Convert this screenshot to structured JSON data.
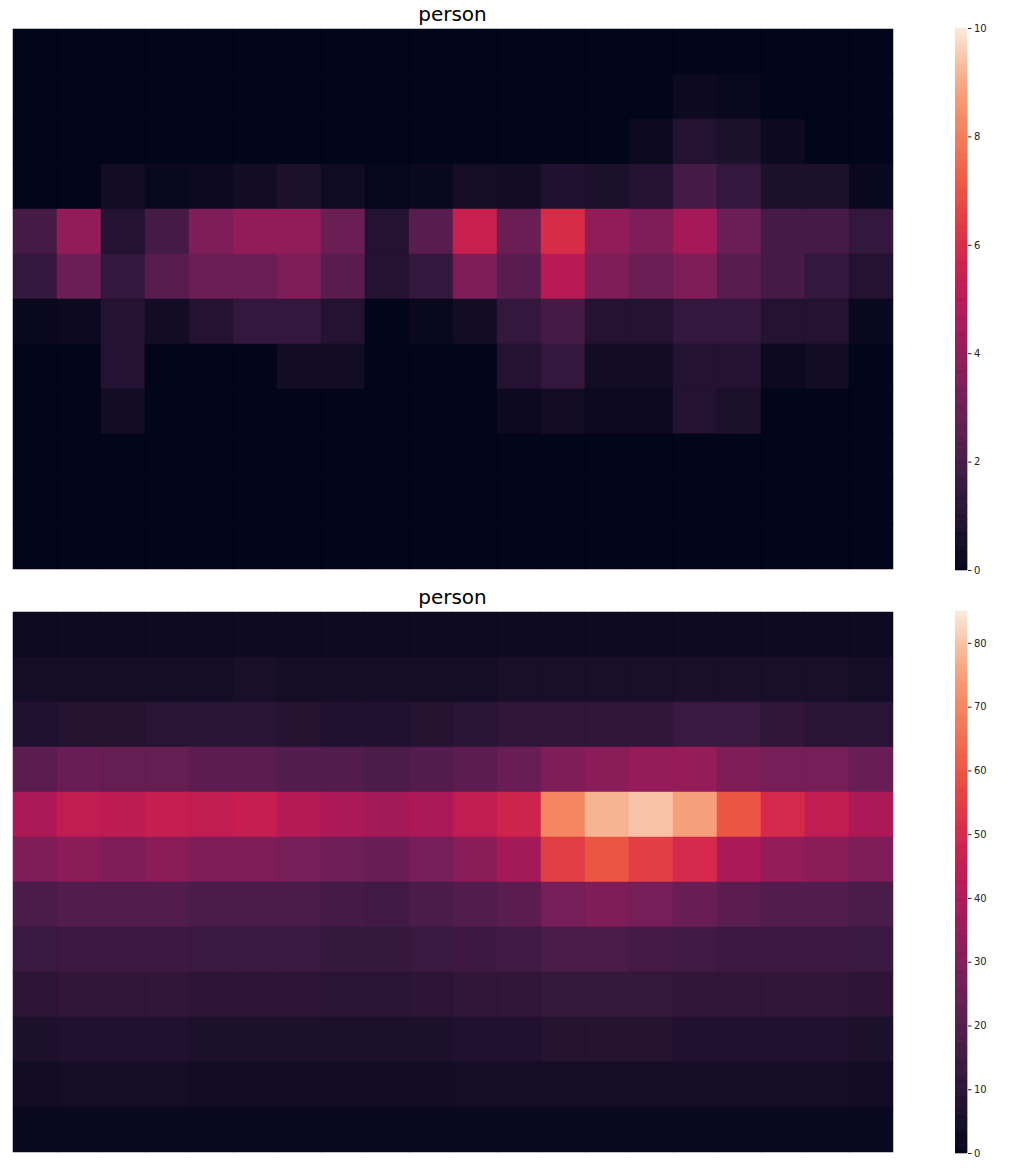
{
  "chart_data": [
    {
      "type": "heatmap",
      "title": "person",
      "tick_labels": false,
      "colorbar_lim": [
        0,
        10
      ],
      "colorbar_ticks": [
        0,
        2,
        4,
        6,
        8,
        10
      ],
      "cells": [
        [
          0,
          0,
          0,
          0,
          0,
          0,
          0,
          0,
          0,
          0,
          0,
          0,
          0,
          0,
          0,
          0,
          0,
          0,
          0,
          0
        ],
        [
          0,
          0,
          0,
          0,
          0,
          0,
          0,
          0,
          0,
          0,
          0,
          0,
          0,
          0,
          0,
          0.3,
          0.2,
          0,
          0,
          0
        ],
        [
          0,
          0,
          0,
          0,
          0,
          0,
          0,
          0,
          0,
          0,
          0,
          0,
          0,
          0,
          0.3,
          1,
          0.8,
          0.3,
          0,
          0
        ],
        [
          0,
          0,
          0.5,
          0.2,
          0.3,
          0.5,
          0.8,
          0.4,
          0.1,
          0.2,
          0.6,
          0.5,
          0.9,
          0.8,
          1,
          2,
          1.5,
          0.8,
          0.8,
          0.2
        ],
        [
          2,
          4,
          1,
          2,
          3.5,
          4,
          4,
          3,
          1,
          2.5,
          5.5,
          3,
          6,
          4,
          3.5,
          4.5,
          3,
          2,
          2,
          1.5
        ],
        [
          1.5,
          3,
          1.5,
          2.5,
          3,
          3,
          3.5,
          2.5,
          1,
          1.5,
          3.5,
          2.5,
          5,
          3.5,
          3,
          3.5,
          2.5,
          2,
          1.5,
          1
        ],
        [
          0.2,
          0.3,
          1,
          0.5,
          1,
          1.5,
          1.5,
          1,
          0,
          0.2,
          0.5,
          1.5,
          2,
          1,
          1,
          1.5,
          1.5,
          1,
          1,
          0.2
        ],
        [
          0,
          0,
          1,
          0,
          0,
          0,
          0.5,
          0.5,
          0,
          0,
          0,
          1,
          1.5,
          0.5,
          0.5,
          1,
          1,
          0.3,
          0.5,
          0
        ],
        [
          0,
          0,
          0.5,
          0,
          0,
          0,
          0,
          0,
          0,
          0,
          0,
          0.3,
          0.5,
          0.3,
          0.3,
          1,
          0.8,
          0,
          0,
          0
        ],
        [
          0,
          0,
          0,
          0,
          0,
          0,
          0,
          0,
          0,
          0,
          0,
          0,
          0,
          0,
          0,
          0,
          0,
          0,
          0,
          0
        ],
        [
          0,
          0,
          0,
          0,
          0,
          0,
          0,
          0,
          0,
          0,
          0,
          0,
          0,
          0,
          0,
          0,
          0,
          0,
          0,
          0
        ],
        [
          0,
          0,
          0,
          0,
          0,
          0,
          0,
          0,
          0,
          0,
          0,
          0,
          0,
          0,
          0,
          0,
          0,
          0,
          0,
          0
        ]
      ]
    },
    {
      "type": "heatmap",
      "title": "person",
      "tick_labels": false,
      "colorbar_lim": [
        0,
        85
      ],
      "colorbar_ticks": [
        0,
        10,
        20,
        30,
        40,
        50,
        60,
        70,
        80
      ],
      "cells": [
        [
          3,
          3,
          3,
          3,
          3,
          3,
          3,
          3,
          3,
          3,
          3,
          3,
          3,
          3,
          3,
          3,
          3,
          3,
          3,
          3
        ],
        [
          5,
          5,
          5,
          5,
          5,
          6,
          5,
          5,
          5,
          5,
          5,
          6,
          6,
          6,
          6,
          6,
          6,
          6,
          6,
          5
        ],
        [
          8,
          9,
          9,
          10,
          10,
          10,
          9,
          8,
          8,
          9,
          10,
          12,
          12,
          12,
          12,
          14,
          14,
          12,
          10,
          10
        ],
        [
          22,
          25,
          24,
          24,
          22,
          22,
          20,
          20,
          18,
          20,
          22,
          25,
          30,
          32,
          35,
          35,
          30,
          28,
          28,
          25
        ],
        [
          40,
          45,
          44,
          46,
          45,
          46,
          42,
          40,
          38,
          40,
          45,
          48,
          70,
          78,
          80,
          75,
          60,
          50,
          45,
          40
        ],
        [
          30,
          32,
          30,
          32,
          30,
          30,
          28,
          26,
          25,
          28,
          32,
          38,
          55,
          60,
          55,
          50,
          40,
          35,
          32,
          30
        ],
        [
          18,
          20,
          20,
          20,
          18,
          18,
          18,
          17,
          16,
          18,
          20,
          22,
          28,
          30,
          28,
          25,
          22,
          20,
          20,
          18
        ],
        [
          14,
          15,
          15,
          15,
          14,
          14,
          14,
          13,
          13,
          14,
          15,
          16,
          18,
          18,
          17,
          16,
          15,
          15,
          15,
          14
        ],
        [
          11,
          12,
          12,
          12,
          11,
          11,
          11,
          10,
          10,
          11,
          12,
          12,
          13,
          13,
          13,
          12,
          12,
          12,
          12,
          11
        ],
        [
          7,
          8,
          8,
          8,
          7,
          7,
          7,
          7,
          7,
          7,
          8,
          8,
          9,
          9,
          9,
          8,
          8,
          8,
          8,
          7
        ],
        [
          4,
          5,
          5,
          5,
          4,
          4,
          4,
          4,
          4,
          4,
          5,
          5,
          5,
          5,
          5,
          5,
          5,
          5,
          5,
          4
        ],
        [
          2,
          2,
          2,
          2,
          2,
          2,
          2,
          2,
          2,
          2,
          2,
          2,
          2,
          2,
          2,
          2,
          2,
          2,
          2,
          2
        ]
      ]
    }
  ]
}
